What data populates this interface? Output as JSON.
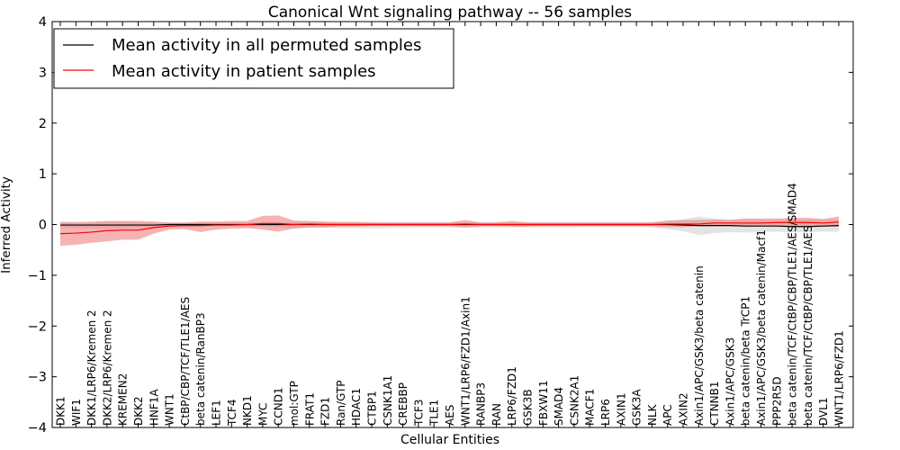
{
  "chart_data": {
    "type": "line",
    "title": "Canonical Wnt signaling pathway -- 56 samples",
    "xlabel": "Cellular Entities",
    "ylabel": "Inferred Activity",
    "ylim": [
      -4,
      4
    ],
    "yticks": [
      "−4",
      "−3",
      "−2",
      "−1",
      "0",
      "1",
      "2",
      "3",
      "4"
    ],
    "ytick_values": [
      -4,
      -3,
      -2,
      -1,
      0,
      1,
      2,
      3,
      4
    ],
    "grid": false,
    "legend_position": "top-left",
    "categories": [
      "DKK1",
      "WIF1",
      "DKK1/LRP6/Kremen 2",
      "DKK2/LRP6/Kremen 2",
      "KREMEN2",
      "DKK2",
      "HNF1A",
      "WNT1",
      "CtBP/CBP/TCF/TLE1/AES",
      "beta catenin/RanBP3",
      "LEF1",
      "TCF4",
      "NKD1",
      "MYC",
      "CCND1",
      "mol:GTP",
      "FRAT1",
      "FZD1",
      "Ran/GTP",
      "HDAC1",
      "CTBP1",
      "CSNK1A1",
      "CREBBP",
      "TCF3",
      "TLE1",
      "AES",
      "WNT1/LRP6/FZD1/Axin1",
      "RANBP3",
      "RAN",
      "LRP6/FZD1",
      "GSK3B",
      "FBXW11",
      "SMAD4",
      "CSNK2A1",
      "MACF1",
      "LRP6",
      "AXIN1",
      "GSK3A",
      "NLK",
      "APC",
      "AXIN2",
      "Axin1/APC/GSK3/beta catenin",
      "CTNNB1",
      "Axin1/APC/GSK3",
      "beta catenin/beta TrCP1",
      "Axin1/APC/GSK3/beta catenin/Macf1",
      "PPP2R5D",
      "beta catenin/TCF/CtBP/CBP/TLE1/AES/SMAD4",
      "beta catenin/TCF/CtBP/CBP/TLE1/AES",
      "DVL1",
      "WNT1/LRP6/FZD1"
    ],
    "series": [
      {
        "name": "Mean activity in all permuted samples",
        "color": "#000000",
        "values": [
          -0.01,
          -0.01,
          -0.01,
          -0.01,
          -0.01,
          -0.01,
          -0.01,
          0,
          0,
          0,
          0,
          0,
          0,
          0,
          0,
          0,
          0,
          0,
          0,
          0,
          0,
          0,
          0,
          0,
          0,
          0,
          0,
          0,
          0,
          0,
          0,
          0,
          0,
          0,
          0,
          0,
          0,
          0,
          0,
          0,
          -0.01,
          -0.02,
          -0.02,
          -0.02,
          -0.03,
          -0.03,
          -0.03,
          -0.04,
          -0.04,
          -0.03,
          -0.02
        ],
        "lower": [
          -0.07,
          -0.08,
          -0.08,
          -0.08,
          -0.08,
          -0.07,
          -0.06,
          -0.05,
          -0.05,
          -0.05,
          -0.04,
          -0.04,
          -0.04,
          -0.04,
          -0.06,
          -0.07,
          -0.06,
          -0.06,
          -0.07,
          -0.07,
          -0.08,
          -0.07,
          -0.07,
          -0.06,
          -0.06,
          -0.06,
          -0.06,
          -0.06,
          -0.06,
          -0.06,
          -0.06,
          -0.06,
          -0.06,
          -0.06,
          -0.05,
          -0.05,
          -0.05,
          -0.05,
          -0.06,
          -0.09,
          -0.13,
          -0.21,
          -0.17,
          -0.15,
          -0.16,
          -0.15,
          -0.14,
          -0.15,
          -0.15,
          -0.14,
          -0.14
        ],
        "upper": [
          0.05,
          0.06,
          0.06,
          0.06,
          0.06,
          0.05,
          0.04,
          0.04,
          0.04,
          0.04,
          0.04,
          0.04,
          0.04,
          0.05,
          0.05,
          0.05,
          0.05,
          0.05,
          0.05,
          0.05,
          0.05,
          0.05,
          0.05,
          0.05,
          0.05,
          0.05,
          0.05,
          0.05,
          0.05,
          0.05,
          0.05,
          0.05,
          0.05,
          0.05,
          0.05,
          0.05,
          0.05,
          0.05,
          0.05,
          0.07,
          0.1,
          0.16,
          0.12,
          0.1,
          0.1,
          0.1,
          0.1,
          0.1,
          0.1,
          0.1,
          0.1
        ]
      },
      {
        "name": "Mean activity in patient samples",
        "color": "#ff0000",
        "values": [
          -0.18,
          -0.17,
          -0.15,
          -0.12,
          -0.11,
          -0.11,
          -0.06,
          -0.03,
          -0.02,
          -0.02,
          -0.01,
          -0.01,
          0,
          0.02,
          0.02,
          0,
          0.01,
          0,
          0,
          0,
          0,
          0,
          0,
          0,
          0,
          0,
          0.01,
          0,
          0,
          0,
          0,
          0,
          0,
          0,
          0,
          0,
          0,
          0,
          0,
          0.01,
          0.01,
          0.01,
          0.03,
          0.03,
          0.03,
          0.03,
          0.04,
          0.04,
          0.04,
          0.03,
          0.05
        ],
        "lower": [
          -0.42,
          -0.4,
          -0.36,
          -0.33,
          -0.3,
          -0.3,
          -0.18,
          -0.1,
          -0.09,
          -0.15,
          -0.1,
          -0.08,
          -0.07,
          -0.1,
          -0.14,
          -0.08,
          -0.06,
          -0.06,
          -0.04,
          -0.04,
          -0.03,
          -0.03,
          -0.03,
          -0.03,
          -0.03,
          -0.03,
          -0.06,
          -0.03,
          -0.03,
          -0.04,
          -0.04,
          -0.03,
          -0.03,
          -0.03,
          -0.03,
          -0.03,
          -0.03,
          -0.03,
          -0.03,
          -0.05,
          -0.05,
          -0.03,
          -0.03,
          -0.03,
          -0.04,
          -0.04,
          -0.03,
          -0.03,
          -0.04,
          -0.04,
          -0.04
        ],
        "upper": [
          0.05,
          0.04,
          0.05,
          0.07,
          0.07,
          0.07,
          0.06,
          0.04,
          0.04,
          0.06,
          0.06,
          0.07,
          0.07,
          0.17,
          0.18,
          0.08,
          0.07,
          0.06,
          0.05,
          0.05,
          0.04,
          0.04,
          0.04,
          0.04,
          0.04,
          0.04,
          0.09,
          0.04,
          0.04,
          0.07,
          0.04,
          0.04,
          0.04,
          0.04,
          0.04,
          0.04,
          0.04,
          0.04,
          0.04,
          0.08,
          0.09,
          0.09,
          0.1,
          0.09,
          0.12,
          0.12,
          0.12,
          0.13,
          0.13,
          0.11,
          0.16
        ]
      }
    ]
  }
}
